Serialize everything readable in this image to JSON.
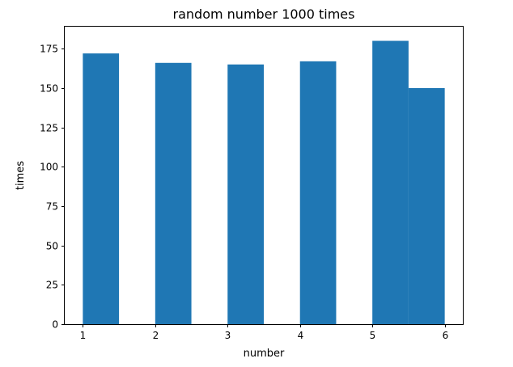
{
  "chart_data": {
    "type": "bar",
    "title": "random number 1000 times",
    "xlabel": "number",
    "ylabel": "times",
    "bins": [
      {
        "x0": 1.0,
        "x1": 1.5,
        "value": 172
      },
      {
        "x0": 1.5,
        "x1": 2.0,
        "value": 0
      },
      {
        "x0": 2.0,
        "x1": 2.5,
        "value": 166
      },
      {
        "x0": 2.5,
        "x1": 3.0,
        "value": 0
      },
      {
        "x0": 3.0,
        "x1": 3.5,
        "value": 165
      },
      {
        "x0": 3.5,
        "x1": 4.0,
        "value": 0
      },
      {
        "x0": 4.0,
        "x1": 4.5,
        "value": 167
      },
      {
        "x0": 4.5,
        "x1": 5.0,
        "value": 0
      },
      {
        "x0": 5.0,
        "x1": 5.5,
        "value": 180
      },
      {
        "x0": 5.5,
        "x1": 6.0,
        "value": 150
      }
    ],
    "xlim": [
      0.75,
      6.25
    ],
    "ylim": [
      0,
      189
    ],
    "xticks": [
      1,
      2,
      3,
      4,
      5,
      6
    ],
    "xtick_labels": [
      "1",
      "2",
      "3",
      "4",
      "5",
      "6"
    ],
    "yticks": [
      0,
      25,
      50,
      75,
      100,
      125,
      150,
      175
    ],
    "ytick_labels": [
      "0",
      "25",
      "50",
      "75",
      "100",
      "125",
      "150",
      "175"
    ],
    "bar_color": "#1f77b4",
    "grid": false,
    "legend": "none"
  }
}
